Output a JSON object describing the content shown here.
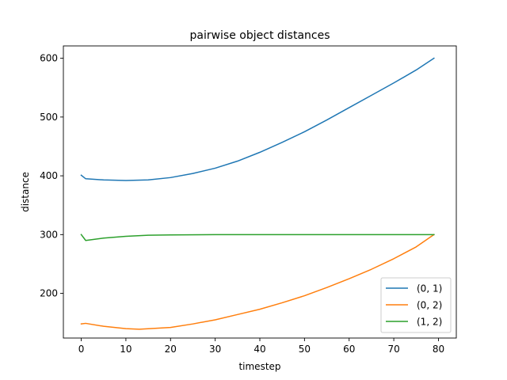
{
  "chart_data": {
    "type": "line",
    "title": "pairwise object distances",
    "xlabel": "timestep",
    "ylabel": "distance",
    "xlim": [
      -4,
      84
    ],
    "ylim": [
      124,
      621
    ],
    "xticks": [
      0,
      10,
      20,
      30,
      40,
      50,
      60,
      70,
      80
    ],
    "yticks": [
      200,
      300,
      400,
      500,
      600
    ],
    "grid": false,
    "legend_position": "bottom-right",
    "series": [
      {
        "name": "(0, 1)",
        "color": "#1f77b4",
        "x": [
          0,
          1,
          5,
          10,
          15,
          20,
          25,
          30,
          35,
          40,
          45,
          50,
          55,
          60,
          65,
          70,
          75,
          79
        ],
        "y": [
          401,
          395,
          393,
          392,
          393,
          397,
          404,
          413,
          425,
          440,
          457,
          475,
          495,
          516,
          537,
          558,
          580,
          600
        ]
      },
      {
        "name": "(0, 2)",
        "color": "#ff7f0e",
        "x": [
          0,
          1,
          5,
          10,
          13,
          20,
          25,
          30,
          35,
          40,
          45,
          50,
          55,
          60,
          65,
          70,
          75,
          79
        ],
        "y": [
          148,
          149,
          144,
          140,
          139,
          142,
          148,
          155,
          164,
          173,
          184,
          196,
          210,
          225,
          241,
          259,
          279,
          300
        ]
      },
      {
        "name": "(1, 2)",
        "color": "#2ca02c",
        "x": [
          0,
          1,
          5,
          10,
          15,
          20,
          30,
          40,
          50,
          60,
          70,
          79
        ],
        "y": [
          300,
          290,
          294,
          297,
          299,
          299.5,
          300,
          300,
          300,
          300,
          300,
          300
        ]
      }
    ]
  }
}
